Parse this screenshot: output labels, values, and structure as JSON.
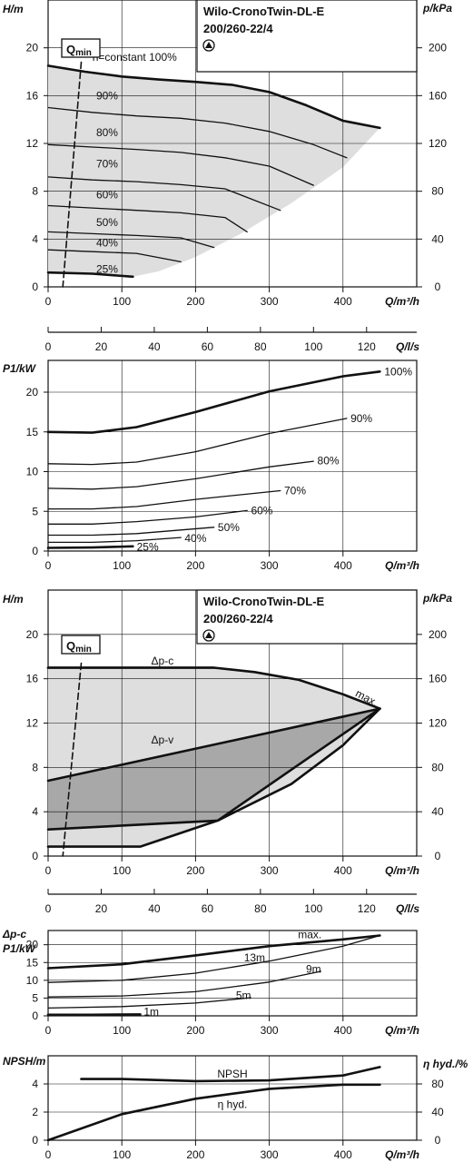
{
  "pump": {
    "title_line1": "Wilo-CronoTwin-DL-E",
    "title_line2": "200/260-22/4"
  },
  "qmin_label": "Q",
  "qmin_sub": "min",
  "chart_data": [
    {
      "id": "H1",
      "type": "line",
      "ylabel": "H/m",
      "y2label": "p/kPa",
      "xlabel": "Q/m³/h",
      "xlim": [
        0,
        500
      ],
      "ylim": [
        0,
        24
      ],
      "y2lim": [
        0,
        240
      ],
      "xticks": [
        0,
        100,
        200,
        300,
        400
      ],
      "yticks": [
        0,
        4,
        8,
        12,
        16,
        20
      ],
      "y2ticks": [
        0,
        40,
        80,
        120,
        160,
        200
      ],
      "grid": true,
      "shaded_region": true,
      "series": [
        {
          "name": "n=constant 100%",
          "bold": true,
          "x": [
            0,
            50,
            100,
            150,
            200,
            250,
            300,
            350,
            400,
            450
          ],
          "y": [
            18.5,
            18.0,
            17.6,
            17.35,
            17.15,
            16.9,
            16.3,
            15.2,
            13.9,
            13.3
          ]
        },
        {
          "name": "90%",
          "x": [
            0,
            60,
            120,
            180,
            240,
            300,
            360,
            405
          ],
          "y": [
            15.0,
            14.6,
            14.3,
            14.1,
            13.7,
            13.0,
            11.9,
            10.8
          ]
        },
        {
          "name": "80%",
          "x": [
            0,
            60,
            120,
            180,
            240,
            300,
            360
          ],
          "y": [
            11.9,
            11.7,
            11.5,
            11.25,
            10.8,
            10.1,
            8.5
          ]
        },
        {
          "name": "70%",
          "x": [
            0,
            60,
            120,
            180,
            240,
            315
          ],
          "y": [
            9.2,
            8.95,
            8.8,
            8.55,
            8.2,
            6.4
          ]
        },
        {
          "name": "60%",
          "x": [
            0,
            60,
            120,
            180,
            240,
            270
          ],
          "y": [
            6.8,
            6.6,
            6.4,
            6.2,
            5.8,
            4.6
          ]
        },
        {
          "name": "50%",
          "x": [
            0,
            60,
            120,
            180,
            225
          ],
          "y": [
            4.6,
            4.45,
            4.3,
            4.1,
            3.3
          ]
        },
        {
          "name": "40%",
          "x": [
            0,
            60,
            120,
            180
          ],
          "y": [
            3.1,
            2.95,
            2.8,
            2.1
          ]
        },
        {
          "name": "25%",
          "bold": true,
          "x": [
            0,
            60,
            115
          ],
          "y": [
            1.2,
            1.1,
            0.85
          ]
        },
        {
          "name": "",
          "dashed": true,
          "x": [
            45,
            20
          ],
          "y": [
            18.8,
            0
          ]
        }
      ]
    },
    {
      "id": "Qls1",
      "type": "axis",
      "xlabel": "Q/l/s",
      "xlim": [
        0,
        125
      ],
      "xticks": [
        0,
        20,
        40,
        60,
        80,
        100,
        120
      ]
    },
    {
      "id": "P1",
      "type": "line",
      "ylabel": "P1/kW",
      "xlabel": "Q/m³/h",
      "xlim": [
        0,
        500
      ],
      "ylim": [
        0,
        24
      ],
      "xticks": [
        0,
        100,
        200,
        300,
        400
      ],
      "yticks": [
        0,
        5,
        10,
        15,
        20
      ],
      "grid": true,
      "series": [
        {
          "name": "100%",
          "bold": true,
          "x": [
            0,
            60,
            120,
            200,
            300,
            400,
            450
          ],
          "y": [
            15.0,
            14.9,
            15.6,
            17.5,
            20.1,
            22.0,
            22.6
          ]
        },
        {
          "name": "90%",
          "x": [
            0,
            60,
            120,
            200,
            300,
            405
          ],
          "y": [
            11.0,
            10.9,
            11.2,
            12.5,
            14.8,
            16.7
          ]
        },
        {
          "name": "80%",
          "x": [
            0,
            60,
            120,
            200,
            300,
            360
          ],
          "y": [
            7.9,
            7.8,
            8.1,
            9.1,
            10.6,
            11.3
          ]
        },
        {
          "name": "70%",
          "x": [
            0,
            60,
            120,
            200,
            315
          ],
          "y": [
            5.3,
            5.3,
            5.6,
            6.5,
            7.6
          ]
        },
        {
          "name": "60%",
          "x": [
            0,
            60,
            120,
            200,
            270
          ],
          "y": [
            3.4,
            3.4,
            3.7,
            4.3,
            5.1
          ]
        },
        {
          "name": "50%",
          "x": [
            0,
            60,
            120,
            225
          ],
          "y": [
            2.0,
            2.0,
            2.2,
            3.0
          ]
        },
        {
          "name": "40%",
          "x": [
            0,
            60,
            120,
            180
          ],
          "y": [
            1.1,
            1.1,
            1.3,
            1.7
          ]
        },
        {
          "name": "25%",
          "bold": true,
          "x": [
            0,
            60,
            115
          ],
          "y": [
            0.4,
            0.45,
            0.6
          ]
        }
      ]
    },
    {
      "id": "H2",
      "type": "line",
      "ylabel": "H/m",
      "y2label": "p/kPa",
      "xlabel": "Q/m³/h",
      "xlim": [
        0,
        500
      ],
      "ylim": [
        0,
        24
      ],
      "y2lim": [
        0,
        240
      ],
      "xticks": [
        0,
        100,
        200,
        300,
        400
      ],
      "yticks": [
        0,
        4,
        8,
        12,
        16,
        20
      ],
      "y2ticks": [
        0,
        40,
        80,
        120,
        160,
        200
      ],
      "grid": true,
      "series": [
        {
          "name": "max.",
          "bold": true,
          "x": [
            0,
            225,
            280,
            340,
            400,
            450
          ],
          "y": [
            17.0,
            17.0,
            16.6,
            15.9,
            14.6,
            13.3
          ]
        },
        {
          "name": "Δp-c",
          "bold": true,
          "x": [
            0,
            225
          ],
          "y": [
            17.0,
            17.0
          ]
        },
        {
          "name": "Δp-v",
          "bold": true,
          "x": [
            0,
            450
          ],
          "y": [
            6.8,
            13.3
          ]
        },
        {
          "name": "",
          "bold": true,
          "x": [
            0,
            230,
            450
          ],
          "y": [
            2.4,
            3.2,
            13.3
          ]
        },
        {
          "name": "",
          "bold": true,
          "x": [
            0,
            125,
            230,
            330,
            400,
            450
          ],
          "y": [
            0.85,
            0.85,
            3.2,
            6.5,
            10.0,
            13.3
          ]
        },
        {
          "name": "",
          "dashed": true,
          "x": [
            45,
            20
          ],
          "y": [
            17.4,
            0
          ]
        }
      ]
    },
    {
      "id": "Qls2",
      "type": "axis",
      "xlabel": "Q/l/s",
      "xlim": [
        0,
        125
      ],
      "xticks": [
        0,
        20,
        40,
        60,
        80,
        100,
        120
      ]
    },
    {
      "id": "P2",
      "type": "line",
      "ylabel": "Δp-c P1/kW",
      "xlabel": "Q/m³/h",
      "xlim": [
        0,
        500
      ],
      "ylim": [
        0,
        24
      ],
      "xticks": [
        0,
        100,
        200,
        300,
        400
      ],
      "yticks": [
        0,
        5,
        10,
        15,
        20
      ],
      "grid": true,
      "series": [
        {
          "name": "max.",
          "bold": true,
          "x": [
            0,
            100,
            200,
            300,
            400,
            450
          ],
          "y": [
            13.4,
            14.5,
            17.0,
            19.6,
            21.5,
            22.6
          ]
        },
        {
          "name": "13m",
          "x": [
            0,
            100,
            200,
            300,
            400,
            450
          ],
          "y": [
            9.4,
            10.0,
            12.0,
            15.4,
            19.6,
            22.6
          ]
        },
        {
          "name": "9m",
          "x": [
            0,
            100,
            200,
            300,
            370
          ],
          "y": [
            5.3,
            5.6,
            6.8,
            9.5,
            12.5
          ]
        },
        {
          "name": "5m",
          "x": [
            0,
            100,
            200,
            275
          ],
          "y": [
            2.2,
            2.6,
            3.6,
            5.1
          ]
        },
        {
          "name": "1m",
          "bold": true,
          "x": [
            0,
            60,
            125
          ],
          "y": [
            0.3,
            0.3,
            0.4
          ]
        }
      ]
    },
    {
      "id": "NPSH",
      "type": "line",
      "ylabel": "NPSH/m",
      "y2label": "η hyd./%",
      "xlabel": "Q/m³/h",
      "xlim": [
        0,
        500
      ],
      "ylim": [
        0,
        6
      ],
      "y2lim": [
        0,
        120
      ],
      "xticks": [
        0,
        100,
        200,
        300,
        400
      ],
      "yticks": [
        0,
        2,
        4
      ],
      "y2ticks": [
        0,
        40,
        80
      ],
      "grid": true,
      "series": [
        {
          "name": "NPSH",
          "bold": true,
          "x": [
            45,
            100,
            200,
            300,
            400,
            450
          ],
          "y": [
            4.35,
            4.35,
            4.2,
            4.25,
            4.6,
            5.2
          ]
        },
        {
          "name": "η hyd.",
          "bold": true,
          "axis": "y2",
          "x": [
            0,
            100,
            200,
            300,
            400,
            450
          ],
          "y": [
            0,
            37,
            59,
            73,
            79,
            79
          ]
        }
      ]
    }
  ],
  "labels": {
    "H1": [
      {
        "t": "n=constant 100%",
        "x": 60,
        "y": 19.2,
        "a": "start"
      },
      {
        "t": "90%",
        "x": 80,
        "y": 16.0,
        "a": "middle"
      },
      {
        "t": "80%",
        "x": 80,
        "y": 12.9,
        "a": "middle"
      },
      {
        "t": "70%",
        "x": 80,
        "y": 10.3,
        "a": "middle"
      },
      {
        "t": "60%",
        "x": 80,
        "y": 7.7,
        "a": "middle"
      },
      {
        "t": "50%",
        "x": 80,
        "y": 5.4,
        "a": "middle"
      },
      {
        "t": "40%",
        "x": 80,
        "y": 3.7,
        "a": "middle"
      },
      {
        "t": "25%",
        "x": 80,
        "y": 1.5,
        "a": "middle"
      }
    ],
    "P1": [
      {
        "t": "100%",
        "x": 475,
        "y": 22.6,
        "a": "middle"
      },
      {
        "t": "90%",
        "x": 425,
        "y": 16.7,
        "a": "middle"
      },
      {
        "t": "80%",
        "x": 380,
        "y": 11.4,
        "a": "middle"
      },
      {
        "t": "70%",
        "x": 335,
        "y": 7.6,
        "a": "middle"
      },
      {
        "t": "60%",
        "x": 290,
        "y": 5.1,
        "a": "middle"
      },
      {
        "t": "50%",
        "x": 245,
        "y": 3.0,
        "a": "middle"
      },
      {
        "t": "40%",
        "x": 200,
        "y": 1.6,
        "a": "middle"
      },
      {
        "t": "25%",
        "x": 135,
        "y": 0.5,
        "a": "middle"
      }
    ],
    "H2": [
      {
        "t": "Δp-c",
        "x": 155,
        "y": 17.6,
        "a": "middle"
      },
      {
        "t": "Δp-v",
        "x": 155,
        "y": 10.5,
        "a": "middle"
      },
      {
        "t": "max.",
        "x": 430,
        "y": 14.3,
        "a": "middle"
      }
    ],
    "P2": [
      {
        "t": "max.",
        "x": 355,
        "y": 22.8,
        "a": "middle"
      },
      {
        "t": "13m",
        "x": 280,
        "y": 16.3,
        "a": "middle"
      },
      {
        "t": "9m",
        "x": 360,
        "y": 13.2,
        "a": "middle"
      },
      {
        "t": "5m",
        "x": 265,
        "y": 5.8,
        "a": "middle"
      },
      {
        "t": "1m",
        "x": 140,
        "y": 1.2,
        "a": "middle"
      }
    ],
    "NPSH": [
      {
        "t": "NPSH",
        "x": 250,
        "y": 4.7,
        "a": "middle"
      },
      {
        "t": "η hyd.",
        "x": 250,
        "y": 2.55,
        "a": "middle"
      }
    ]
  },
  "regions": {
    "H1_light": [
      [
        0,
        18.5
      ],
      [
        50,
        18.0
      ],
      [
        100,
        17.6
      ],
      [
        150,
        17.35
      ],
      [
        200,
        17.15
      ],
      [
        250,
        16.9
      ],
      [
        300,
        16.3
      ],
      [
        350,
        15.2
      ],
      [
        400,
        13.9
      ],
      [
        450,
        13.3
      ],
      [
        400,
        10.0
      ],
      [
        330,
        7.0
      ],
      [
        260,
        4.4
      ],
      [
        200,
        2.5
      ],
      [
        150,
        1.3
      ],
      [
        115,
        0.85
      ],
      [
        0,
        1.2
      ]
    ],
    "H2_light": [
      [
        0,
        17.0
      ],
      [
        225,
        17.0
      ],
      [
        280,
        16.6
      ],
      [
        340,
        15.9
      ],
      [
        400,
        14.6
      ],
      [
        450,
        13.3
      ],
      [
        400,
        10.0
      ],
      [
        330,
        6.5
      ],
      [
        230,
        3.2
      ],
      [
        125,
        0.85
      ],
      [
        0,
        0.85
      ]
    ],
    "H2_dark": [
      [
        0,
        6.8
      ],
      [
        450,
        13.3
      ],
      [
        230,
        3.2
      ],
      [
        0,
        2.4
      ]
    ]
  }
}
